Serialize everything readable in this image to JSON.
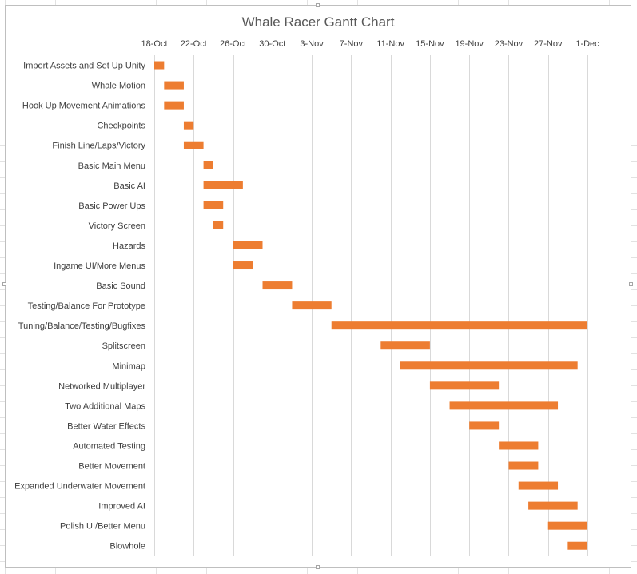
{
  "chart_data": {
    "type": "bar",
    "orientation": "horizontal",
    "title": "Whale Racer Gantt Chart",
    "xlabel": "",
    "ylabel": "",
    "x_axis_type": "date",
    "x_axis_position": "top",
    "xlim": [
      "2016-10-18",
      "2016-12-03"
    ],
    "x_ticks": [
      {
        "date": "2016-10-18",
        "label": "18-Oct"
      },
      {
        "date": "2016-10-22",
        "label": "22-Oct"
      },
      {
        "date": "2016-10-26",
        "label": "26-Oct"
      },
      {
        "date": "2016-10-30",
        "label": "30-Oct"
      },
      {
        "date": "2016-11-03",
        "label": "3-Nov"
      },
      {
        "date": "2016-11-07",
        "label": "7-Nov"
      },
      {
        "date": "2016-11-11",
        "label": "11-Nov"
      },
      {
        "date": "2016-11-15",
        "label": "15-Nov"
      },
      {
        "date": "2016-11-19",
        "label": "19-Nov"
      },
      {
        "date": "2016-11-23",
        "label": "23-Nov"
      },
      {
        "date": "2016-11-27",
        "label": "27-Nov"
      },
      {
        "date": "2016-12-01",
        "label": "1-Dec"
      }
    ],
    "grid": true,
    "legend": "none",
    "bar_color": "#ed7d31",
    "tasks": [
      {
        "name": "Import Assets and Set Up Unity",
        "start": "2016-10-18",
        "end": "2016-10-19"
      },
      {
        "name": "Whale Motion",
        "start": "2016-10-19",
        "end": "2016-10-21"
      },
      {
        "name": "Hook Up Movement Animations",
        "start": "2016-10-19",
        "end": "2016-10-21"
      },
      {
        "name": "Checkpoints",
        "start": "2016-10-21",
        "end": "2016-10-22"
      },
      {
        "name": "Finish Line/Laps/Victory",
        "start": "2016-10-21",
        "end": "2016-10-23"
      },
      {
        "name": "Basic Main Menu",
        "start": "2016-10-23",
        "end": "2016-10-24"
      },
      {
        "name": "Basic AI",
        "start": "2016-10-23",
        "end": "2016-10-27"
      },
      {
        "name": "Basic Power Ups",
        "start": "2016-10-23",
        "end": "2016-10-25"
      },
      {
        "name": "Victory Screen",
        "start": "2016-10-24",
        "end": "2016-10-25"
      },
      {
        "name": "Hazards",
        "start": "2016-10-26",
        "end": "2016-10-29"
      },
      {
        "name": "Ingame UI/More Menus",
        "start": "2016-10-26",
        "end": "2016-10-28"
      },
      {
        "name": "Basic Sound",
        "start": "2016-10-29",
        "end": "2016-11-01"
      },
      {
        "name": "Testing/Balance For Prototype",
        "start": "2016-11-01",
        "end": "2016-11-05"
      },
      {
        "name": "Tuning/Balance/Testing/Bugfixes",
        "start": "2016-11-05",
        "end": "2016-12-01"
      },
      {
        "name": "Splitscreen",
        "start": "2016-11-10",
        "end": "2016-11-15"
      },
      {
        "name": "Minimap",
        "start": "2016-11-12",
        "end": "2016-11-30"
      },
      {
        "name": "Networked Multiplayer",
        "start": "2016-11-15",
        "end": "2016-11-22"
      },
      {
        "name": "Two Additional Maps",
        "start": "2016-11-17",
        "end": "2016-11-28"
      },
      {
        "name": "Better Water Effects",
        "start": "2016-11-19",
        "end": "2016-11-22"
      },
      {
        "name": "Automated Testing",
        "start": "2016-11-22",
        "end": "2016-11-26"
      },
      {
        "name": "Better Movement",
        "start": "2016-11-23",
        "end": "2016-11-26"
      },
      {
        "name": "Expanded Underwater Movement",
        "start": "2016-11-24",
        "end": "2016-11-28"
      },
      {
        "name": "Improved AI",
        "start": "2016-11-25",
        "end": "2016-11-30"
      },
      {
        "name": "Polish UI/Better Menu",
        "start": "2016-11-27",
        "end": "2016-12-01"
      },
      {
        "name": "Blowhole",
        "start": "2016-11-29",
        "end": "2016-12-01"
      }
    ]
  }
}
